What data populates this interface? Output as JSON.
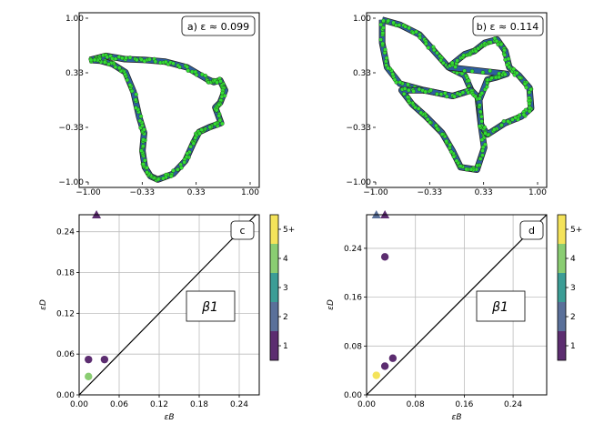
{
  "chart_data": [
    {
      "type": "scatter",
      "panel": "a",
      "label": "a) ε ≈ 0.099",
      "xlim": [
        -1.0,
        1.0
      ],
      "ylim": [
        -1.0,
        1.0
      ],
      "xticks": [
        "−1.00",
        "−0.33",
        "0.33",
        "1.00"
      ],
      "yticks": [
        "1.00",
        "0.33",
        "−0.33",
        "−1.00"
      ],
      "colors": {
        "point": "#33dd33",
        "fill": "#2f5f9f",
        "edge": "#222222"
      },
      "shape_outline": [
        [
          -0.98,
          0.49
        ],
        [
          -0.78,
          0.54
        ],
        [
          -0.55,
          0.5
        ],
        [
          -0.3,
          0.49
        ],
        [
          -0.05,
          0.47
        ],
        [
          0.22,
          0.4
        ],
        [
          0.46,
          0.26
        ],
        [
          0.55,
          0.22
        ],
        [
          0.63,
          0.24
        ],
        [
          0.69,
          0.12
        ],
        [
          0.63,
          -0.03
        ],
        [
          0.57,
          -0.09
        ],
        [
          0.64,
          -0.28
        ],
        [
          0.5,
          -0.33
        ],
        [
          0.37,
          -0.39
        ],
        [
          0.3,
          -0.52
        ],
        [
          0.2,
          -0.74
        ],
        [
          0.05,
          -0.9
        ],
        [
          -0.14,
          -0.97
        ],
        [
          -0.23,
          -0.93
        ],
        [
          -0.3,
          -0.82
        ],
        [
          -0.33,
          -0.62
        ],
        [
          -0.31,
          -0.4
        ],
        [
          -0.37,
          -0.21
        ],
        [
          -0.44,
          0.1
        ],
        [
          -0.54,
          0.34
        ],
        [
          -0.7,
          0.44
        ],
        [
          -0.85,
          0.48
        ]
      ]
    },
    {
      "type": "scatter",
      "panel": "b",
      "label": "b) ε ≈ 0.114",
      "xlim": [
        -1.0,
        1.0
      ],
      "ylim": [
        -1.0,
        1.0
      ],
      "xticks": [
        "−1.00",
        "−0.33",
        "0.33",
        "1.00"
      ],
      "yticks": [
        "1.00",
        "0.33",
        "−0.33",
        "−1.00"
      ],
      "colors": {
        "point": "#33dd33",
        "fill": "#2f5f9f",
        "edge": "#222222"
      },
      "loops": [
        [
          [
            -0.92,
            0.98
          ],
          [
            -0.7,
            0.92
          ],
          [
            -0.46,
            0.8
          ],
          [
            -0.28,
            0.6
          ],
          [
            -0.1,
            0.4
          ],
          [
            0.1,
            0.3
          ],
          [
            0.18,
            0.12
          ],
          [
            -0.05,
            0.05
          ],
          [
            -0.4,
            0.12
          ],
          [
            -0.7,
            0.2
          ],
          [
            -0.86,
            0.4
          ],
          [
            -0.92,
            0.7
          ]
        ],
        [
          [
            -0.05,
            0.05
          ],
          [
            0.18,
            0.12
          ],
          [
            0.26,
            0.04
          ],
          [
            0.3,
            -0.3
          ],
          [
            0.34,
            -0.58
          ],
          [
            0.25,
            -0.85
          ],
          [
            0.05,
            -0.82
          ],
          [
            -0.05,
            -0.62
          ],
          [
            -0.18,
            -0.4
          ],
          [
            -0.38,
            -0.2
          ],
          [
            -0.55,
            -0.05
          ],
          [
            -0.68,
            0.12
          ],
          [
            -0.4,
            0.12
          ]
        ],
        [
          [
            -0.1,
            0.4
          ],
          [
            0.1,
            0.56
          ],
          [
            0.22,
            0.6
          ],
          [
            0.35,
            0.7
          ],
          [
            0.5,
            0.74
          ],
          [
            0.6,
            0.6
          ],
          [
            0.65,
            0.4
          ],
          [
            0.77,
            0.3
          ],
          [
            0.9,
            0.15
          ],
          [
            0.92,
            -0.1
          ],
          [
            0.8,
            -0.2
          ],
          [
            0.6,
            -0.28
          ],
          [
            0.38,
            -0.42
          ],
          [
            0.3,
            -0.3
          ],
          [
            0.28,
            0.0
          ],
          [
            0.38,
            0.25
          ],
          [
            0.5,
            0.28
          ],
          [
            0.62,
            0.32
          ]
        ]
      ]
    },
    {
      "type": "scatter",
      "panel": "c",
      "label": "c",
      "annotation": "β1",
      "xlabel": "εB",
      "ylabel": "εD",
      "xlim": [
        0.0,
        0.27
      ],
      "ylim": [
        0.0,
        0.265
      ],
      "xticks": [
        0.0,
        0.06,
        0.12,
        0.18,
        0.24
      ],
      "yticks": [
        0.0,
        0.06,
        0.12,
        0.18,
        0.24
      ],
      "points": [
        {
          "x": 0.014,
          "y": 0.052,
          "multiplicity": 1
        },
        {
          "x": 0.038,
          "y": 0.052,
          "multiplicity": 1
        },
        {
          "x": 0.014,
          "y": 0.027,
          "multiplicity": 4
        }
      ],
      "infinite_points": [
        {
          "x": 0.026,
          "multiplicity": 1
        }
      ],
      "diagonal": true,
      "grid": true,
      "colorbar": {
        "ticks": [
          "1",
          "2",
          "3",
          "4",
          "5+"
        ],
        "colors": [
          "#5c2d70",
          "#5a709a",
          "#3c9d96",
          "#8acd72",
          "#f4e35a"
        ]
      }
    },
    {
      "type": "scatter",
      "panel": "d",
      "label": "d",
      "annotation": "β1",
      "xlabel": "εB",
      "ylabel": "εD",
      "xlim": [
        0.0,
        0.295
      ],
      "ylim": [
        0.0,
        0.295
      ],
      "xticks": [
        0.0,
        0.08,
        0.16,
        0.24
      ],
      "yticks": [
        0.0,
        0.08,
        0.16,
        0.24
      ],
      "points": [
        {
          "x": 0.03,
          "y": 0.226,
          "multiplicity": 1
        },
        {
          "x": 0.043,
          "y": 0.06,
          "multiplicity": 1
        },
        {
          "x": 0.03,
          "y": 0.047,
          "multiplicity": 1
        },
        {
          "x": 0.016,
          "y": 0.032,
          "multiplicity": 5
        }
      ],
      "infinite_points": [
        {
          "x": 0.016,
          "multiplicity": 2
        },
        {
          "x": 0.03,
          "multiplicity": 1
        }
      ],
      "diagonal": true,
      "grid": true,
      "colorbar": {
        "ticks": [
          "1",
          "2",
          "3",
          "4",
          "5+"
        ],
        "colors": [
          "#5c2d70",
          "#5a709a",
          "#3c9d96",
          "#8acd72",
          "#f4e35a"
        ]
      }
    }
  ]
}
